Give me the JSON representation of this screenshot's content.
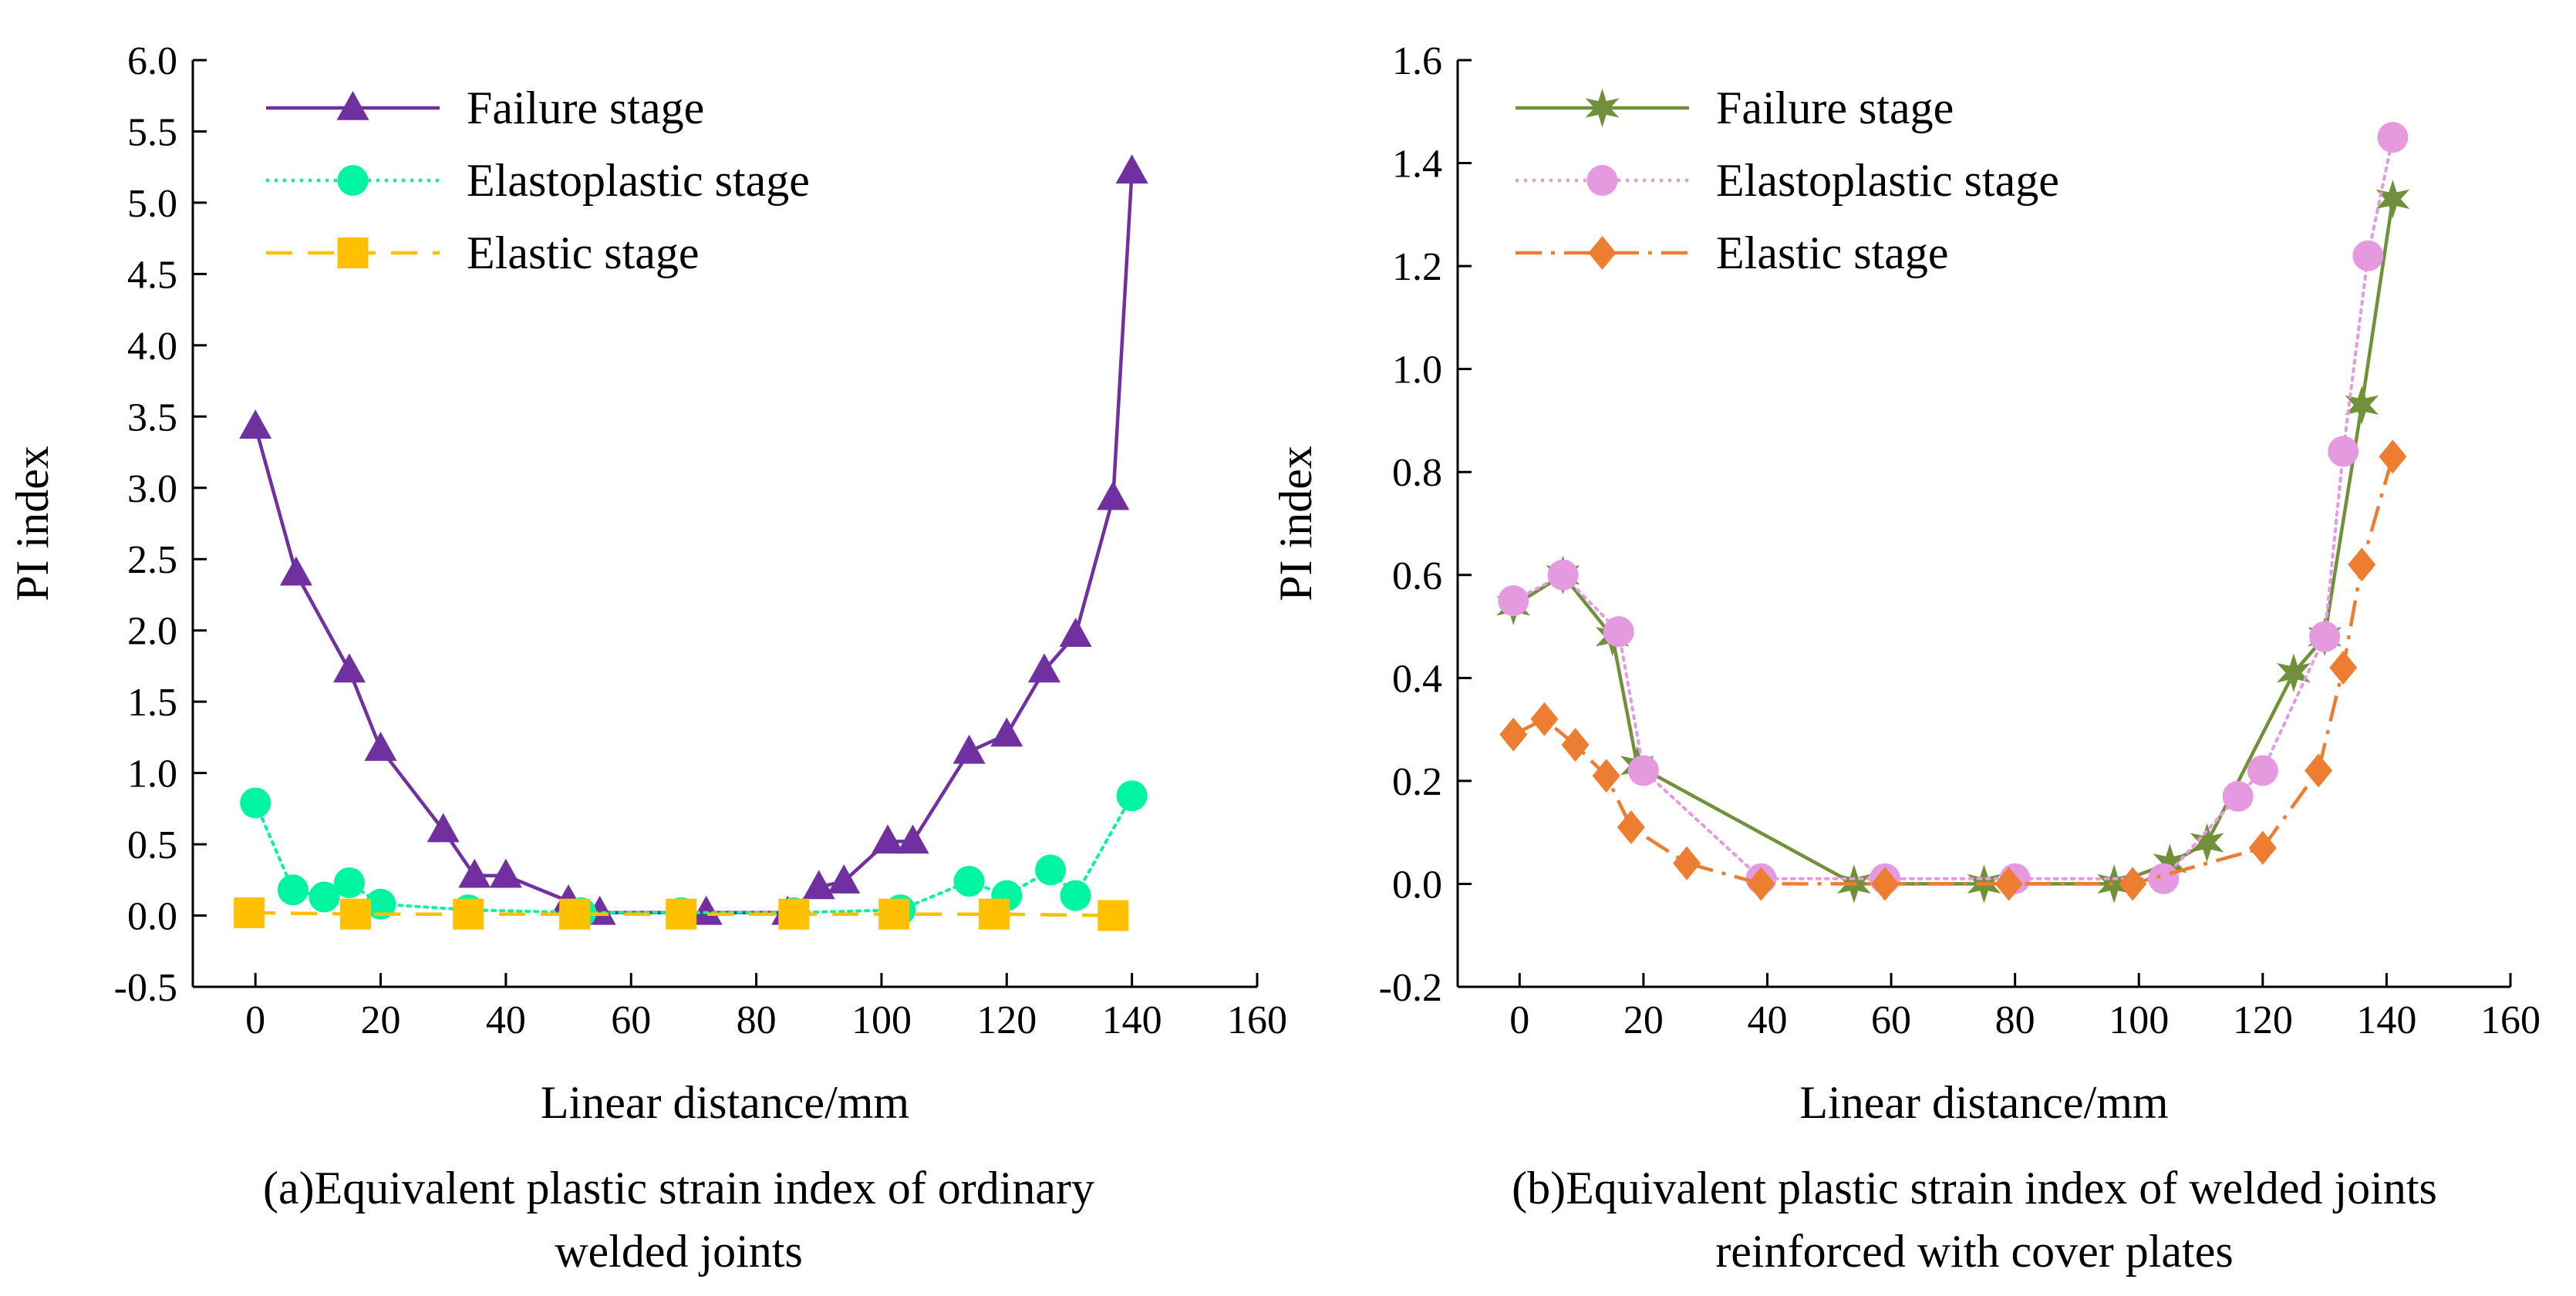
{
  "chart_data": [
    {
      "id": "a",
      "type": "line",
      "caption_line1": "(a)Equivalent plastic strain index of ordinary",
      "caption_line2": "welded joints",
      "xlabel": "Linear distance/mm",
      "ylabel": "PI index",
      "xlim": [
        -10,
        160
      ],
      "ylim": [
        -0.5,
        6.0
      ],
      "x_ticks": [
        "0",
        "20",
        "40",
        "60",
        "80",
        "100",
        "120",
        "140",
        "160"
      ],
      "y_ticks": [
        "-0.5",
        "0.0",
        "0.5",
        "1.0",
        "1.5",
        "2.0",
        "2.5",
        "3.0",
        "3.5",
        "4.0",
        "4.5",
        "5.0",
        "5.5",
        "6.0"
      ],
      "legend_position": "top-left",
      "series": [
        {
          "name": "Failure stage",
          "color": "#7030A0",
          "marker": "triangle",
          "dash": "solid",
          "x": [
            0,
            6.5,
            15,
            20,
            30,
            35,
            40,
            50,
            55,
            72,
            85,
            90,
            94,
            101,
            105,
            114,
            120,
            126,
            131,
            137,
            140
          ],
          "y": [
            3.43,
            2.4,
            1.72,
            1.17,
            0.6,
            0.28,
            0.28,
            0.1,
            0.02,
            0.02,
            0.02,
            0.2,
            0.24,
            0.52,
            0.52,
            1.15,
            1.27,
            1.72,
            1.97,
            2.93,
            5.22
          ]
        },
        {
          "name": "Elastoplastic stage",
          "color": "#00F5A0",
          "marker": "circle",
          "dash": "dotted",
          "x": [
            0,
            6,
            11,
            15,
            20,
            34,
            52,
            68,
            86,
            103,
            114,
            120,
            127,
            131,
            140
          ],
          "y": [
            0.79,
            0.18,
            0.13,
            0.23,
            0.08,
            0.04,
            0.02,
            0.02,
            0.02,
            0.04,
            0.24,
            0.14,
            0.32,
            0.14,
            0.84
          ]
        },
        {
          "name": "Elastic stage",
          "color": "#FFC000",
          "marker": "square",
          "dash": "dashed",
          "x": [
            -1,
            16,
            34,
            51,
            68,
            86,
            102,
            118,
            137
          ],
          "y": [
            0.02,
            0.01,
            0.01,
            0.01,
            0.01,
            0.01,
            0.01,
            0.01,
            0.0
          ]
        }
      ]
    },
    {
      "id": "b",
      "type": "line",
      "caption_line1": "(b)Equivalent plastic strain index of welded joints",
      "caption_line2": "reinforced with cover plates",
      "xlabel": "Linear distance/mm",
      "ylabel": "PI index",
      "xlim": [
        -10,
        160
      ],
      "ylim": [
        -0.2,
        1.6
      ],
      "x_ticks": [
        "0",
        "20",
        "40",
        "60",
        "80",
        "100",
        "120",
        "140",
        "160"
      ],
      "y_ticks": [
        "-0.2",
        "0.0",
        "0.2",
        "0.4",
        "0.6",
        "0.8",
        "1.0",
        "1.2",
        "1.4",
        "1.6"
      ],
      "legend_position": "top-left",
      "series": [
        {
          "name": "Failure stage",
          "color": "#70913A",
          "marker": "star",
          "dash": "solid",
          "x": [
            -1,
            7,
            15,
            19,
            54,
            75,
            96,
            105,
            111,
            125,
            130,
            136,
            141
          ],
          "y": [
            0.54,
            0.6,
            0.48,
            0.23,
            0.0,
            0.0,
            0.0,
            0.04,
            0.08,
            0.41,
            0.48,
            0.93,
            1.33
          ]
        },
        {
          "name": "Elastoplastic stage",
          "color": "#E59AE0",
          "marker": "circle",
          "dash": "dotted",
          "x": [
            -1,
            7,
            16,
            20,
            39,
            59,
            80,
            104,
            116,
            120,
            130,
            133,
            137,
            141
          ],
          "y": [
            0.55,
            0.6,
            0.49,
            0.22,
            0.01,
            0.01,
            0.01,
            0.01,
            0.17,
            0.22,
            0.48,
            0.84,
            1.22,
            1.45
          ]
        },
        {
          "name": "Elastic stage",
          "color": "#ED7D31",
          "marker": "diamond",
          "dash": "dashdot",
          "x": [
            -1,
            4,
            9,
            14,
            18,
            27,
            39,
            59,
            79,
            99,
            120,
            129,
            133,
            136,
            141
          ],
          "y": [
            0.29,
            0.32,
            0.27,
            0.21,
            0.11,
            0.04,
            0.0,
            0.0,
            0.0,
            0.0,
            0.07,
            0.22,
            0.42,
            0.62,
            0.83
          ]
        }
      ]
    }
  ]
}
